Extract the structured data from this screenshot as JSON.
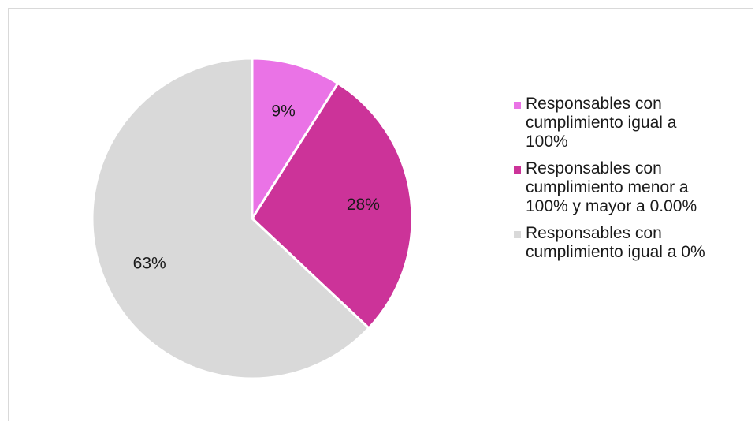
{
  "chart_data": {
    "type": "pie",
    "slices": [
      {
        "label": "Responsables con\ncumplimiento igual a\n100%",
        "value": 9,
        "display": "9%",
        "color": "#ea73e6"
      },
      {
        "label": "Responsables con\ncumplimiento menor a\n100% y mayor a 0.00%",
        "value": 28,
        "display": "28%",
        "color": "#cc3399"
      },
      {
        "label": "Responsables con\ncumplimiento igual a 0%",
        "value": 63,
        "display": "63%",
        "color": "#d9d9d9"
      }
    ],
    "legend_position": "right"
  }
}
